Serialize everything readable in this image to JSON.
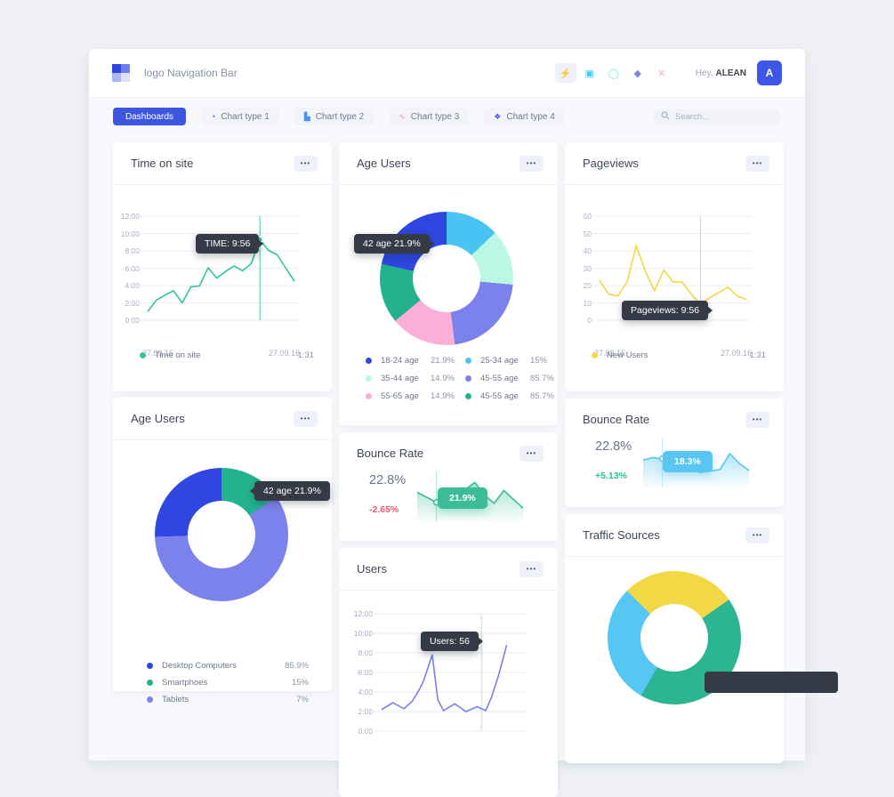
{
  "navbar": {
    "logo_title": "logo Navigation Bar",
    "greeting_prefix": "Hey,",
    "username": "ALEAN",
    "avatar_letter": "A",
    "icons": [
      {
        "name": "bolt-icon",
        "glyph": "⚡",
        "color": "#6D5DF6",
        "active": true
      },
      {
        "name": "gallery-icon",
        "glyph": "▣",
        "color": "#4AC7F4",
        "active": false
      },
      {
        "name": "circle-icon",
        "glyph": "◯",
        "color": "#7BE8C9",
        "active": false
      },
      {
        "name": "shield-icon",
        "glyph": "◆",
        "color": "#7B82EC",
        "active": false
      },
      {
        "name": "scissors-icon",
        "glyph": "✕",
        "color": "#FBADD7",
        "active": false
      }
    ]
  },
  "toolbar": {
    "dashboards_label": "Dashboards",
    "chart_buttons": [
      {
        "label": "Chart type 1",
        "icon": "donut-chart-icon",
        "icon_glyph": "◔",
        "icon_color": "#3D56E0"
      },
      {
        "label": "Chart type 2",
        "icon": "bar-chart-icon",
        "icon_glyph": "▙",
        "icon_color": "#4A90F5"
      },
      {
        "label": "Chart type 3",
        "icon": "line-chart-icon",
        "icon_glyph": "∿",
        "icon_color": "#F77EA8"
      },
      {
        "label": "Chart type 4",
        "icon": "scatter-chart-icon",
        "icon_glyph": "❖",
        "icon_color": "#3D56E0"
      }
    ],
    "search_placeholder": "Search..."
  },
  "ui": {
    "more_glyph": "•••"
  },
  "colors": {
    "accent_blue": "#3D56E0",
    "green": "#2EC5A0",
    "yellow": "#F6D643",
    "periwinkle": "#7B82EC",
    "sky": "#49C3F2",
    "mint": "#BCF7E6",
    "pink": "#FBAED8",
    "deep_green": "#22B28D",
    "negative": "#F2566B",
    "positive": "#2BC48A",
    "tooltip_dark": "#343B46"
  },
  "cards": {
    "time_on_site": {
      "title": "Time on site",
      "tooltip": "TIME:  9:56",
      "x_start": "27.09.16",
      "x_end": "27.09.16",
      "legend": [
        {
          "color": "#2EC5A0",
          "label": "Time on site",
          "value": "1:31"
        }
      ]
    },
    "age_users_mid": {
      "title": "Age Users",
      "tooltip": "42 age 21.9%",
      "legend": [
        {
          "color": "#2F46E0",
          "label": "18-24 age",
          "value": "21.9%"
        },
        {
          "color": "#49C3F2",
          "label": "25-34 age",
          "value": "15%"
        },
        {
          "color": "#BCF7E6",
          "label": "35-44 age",
          "value": "14.9%"
        },
        {
          "color": "#7B82EC",
          "label": "45-55 age",
          "value": "85.7%"
        },
        {
          "color": "#FBAED8",
          "label": "55-65 age",
          "value": "14.9%"
        },
        {
          "color": "#22B28D",
          "label": "45-55 age",
          "value": "85.7%"
        }
      ]
    },
    "pageviews": {
      "title": "Pageviews",
      "tooltip": "Pageviews:  9:56",
      "x_start": "27.09.16",
      "x_end": "27.09.16",
      "legend": [
        {
          "color": "#F6D643",
          "label": "New Users",
          "value": "1:31"
        }
      ]
    },
    "age_users_left": {
      "title": "Age Users",
      "tooltip": "42 age 21.9%",
      "legend": [
        {
          "color": "#2F46E0",
          "label": "Desktop Computers",
          "value": "85.9%"
        },
        {
          "color": "#22B28D",
          "label": "Smartphoes",
          "value": "15%"
        },
        {
          "color": "#7B82EC",
          "label": "Tablets",
          "value": "7%"
        }
      ]
    },
    "bounce_green": {
      "title": "Bounce Rate",
      "value": "22.8%",
      "delta": "-2.65%",
      "tooltip": "21.9%"
    },
    "bounce_blue": {
      "title": "Bounce Rate",
      "value": "22.8%",
      "delta": "+5.13%",
      "tooltip": "18.3%"
    },
    "users": {
      "title": "Users",
      "tooltip": "Users:  56"
    },
    "traffic": {
      "title": "Traffic Sources"
    }
  },
  "chart_data": [
    {
      "id": "time_on_site",
      "type": "line",
      "color": "#2EC5A0",
      "ylim": [
        0,
        12
      ],
      "yticks": [
        "12:00",
        "10:00",
        "8:00",
        "6:00",
        "4:00",
        "2:00",
        "0:00"
      ],
      "xticks": [
        "27.09.16",
        "27.09.16"
      ],
      "values": [
        1.0,
        2.3,
        2.9,
        3.4,
        2.0,
        3.85,
        3.95,
        6.05,
        4.85,
        5.6,
        6.25,
        5.7,
        6.55,
        9.3,
        8.05,
        7.55,
        6.0,
        4.5
      ],
      "marker_index": 13,
      "vline": "full",
      "vline_color": "#2EC5A0",
      "dot": "solid",
      "tooltip_label": "TIME",
      "tooltip_value": "9:56",
      "legend_total": "1:31"
    },
    {
      "id": "age_users_donut",
      "type": "pie",
      "donut": true,
      "start_angle": 0,
      "segments": [
        {
          "label": "25-34 age",
          "legend_value": 15,
          "arc_pct": 13,
          "color": "#49C3F2"
        },
        {
          "label": "35-44 age",
          "legend_value": 14.9,
          "arc_pct": 13.5,
          "color": "#BCF7E6"
        },
        {
          "label": "45-55 age",
          "legend_value": 85.7,
          "arc_pct": 21.5,
          "color": "#7B82EC"
        },
        {
          "label": "55-65 age",
          "legend_value": 14.9,
          "arc_pct": 16,
          "color": "#FBAED8"
        },
        {
          "label": "45-55 age",
          "legend_value": 85.7,
          "arc_pct": 14.5,
          "color": "#22B28D"
        },
        {
          "label": "18-24 age",
          "legend_value": 21.9,
          "arc_pct": 21.5,
          "color": "#2F46E0"
        }
      ]
    },
    {
      "id": "pageviews",
      "type": "line",
      "color": "#F6D643",
      "ylim": [
        0,
        60
      ],
      "yticks": [
        "60",
        "50",
        "40",
        "30",
        "20",
        "10",
        "0"
      ],
      "xticks": [
        "27.09.16",
        "27.09.16"
      ],
      "values": [
        23,
        15,
        14,
        22,
        43,
        28,
        17,
        29,
        22,
        22,
        15,
        9,
        13,
        16,
        19,
        14,
        12
      ],
      "marker_index": 11,
      "vline": "full",
      "vline_color": "#F6D643",
      "dot": "solid",
      "tooltip_label": "Pageviews",
      "tooltip_value": "9:56",
      "legend_total": "1:31"
    },
    {
      "id": "age_users_devices",
      "type": "pie",
      "donut": true,
      "start_angle": 0,
      "segments": [
        {
          "label": "Smartphoes",
          "legend_value": 15,
          "arc_pct": 15.3,
          "color": "#22B28D"
        },
        {
          "label": "Tablets",
          "legend_value": 7,
          "arc_pct": 59.2,
          "color": "#7B82EC"
        },
        {
          "label": "Desktop Computers",
          "legend_value": 85.9,
          "arc_pct": 25.5,
          "color": "#2F46E0"
        }
      ]
    },
    {
      "id": "bounce_green",
      "type": "area",
      "color": "#3CBD97",
      "ylim": [
        0,
        100
      ],
      "fill": true,
      "values": [
        58,
        48,
        38,
        52,
        46,
        64,
        78,
        52,
        36,
        62,
        44,
        26
      ],
      "marker_index": 2,
      "vline": "full",
      "vline_color": "#A8E3D2",
      "dot": "hollow",
      "headline_value": "22.8%",
      "delta": "-2.65%",
      "tooltip_value": "21.9%"
    },
    {
      "id": "bounce_blue",
      "type": "area",
      "color": "#59C5F0",
      "ylim": [
        0,
        100
      ],
      "fill": true,
      "values": [
        55,
        60,
        58,
        54,
        46,
        35,
        30,
        33,
        36,
        68,
        48,
        34
      ],
      "marker_index": 2,
      "vline": "full",
      "vline_color": "#BCE7F8",
      "dot": "hollow",
      "headline_value": "22.8%",
      "delta": "+5.13%",
      "tooltip_value": "18.3%"
    },
    {
      "id": "users",
      "type": "line",
      "color": "#7B7FE8",
      "ylim": [
        0,
        12
      ],
      "yticks": [
        "12:00",
        "10:00",
        "8:00",
        "6:00",
        "4:00",
        "2:00",
        "0:00"
      ],
      "points": [
        [
          0,
          2.2
        ],
        [
          0.08,
          2.9
        ],
        [
          0.16,
          2.3
        ],
        [
          0.22,
          3.1
        ],
        [
          0.27,
          4.3
        ],
        [
          0.3,
          5.2
        ],
        [
          0.36,
          7.8
        ],
        [
          0.4,
          3.2
        ],
        [
          0.44,
          2.1
        ],
        [
          0.52,
          2.8
        ],
        [
          0.6,
          2.0
        ],
        [
          0.68,
          2.5
        ],
        [
          0.74,
          2.1
        ],
        [
          0.78,
          3.4
        ],
        [
          0.83,
          5.6
        ],
        [
          0.89,
          8.8
        ]
      ],
      "vline": 0.7,
      "vline_color": "#CDD2E0",
      "tooltip_label": "Users",
      "tooltip_value": "56"
    },
    {
      "id": "traffic_sources",
      "type": "pie",
      "donut": true,
      "start_angle": -45,
      "segments": [
        {
          "arc_pct": 27.8,
          "color": "#F2D844"
        },
        {
          "arc_pct": 43,
          "color": "#2BB591"
        },
        {
          "arc_pct": 29.2,
          "color": "#55C7F2"
        }
      ]
    }
  ]
}
